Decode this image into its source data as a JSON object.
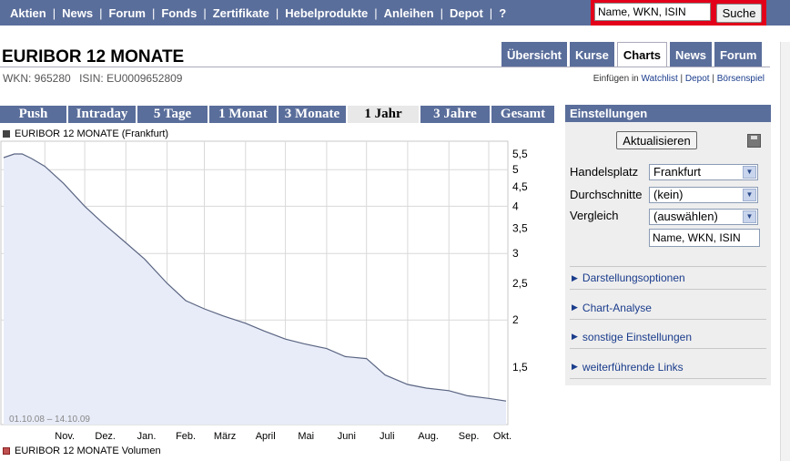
{
  "nav": {
    "items": [
      "Aktien",
      "News",
      "Forum",
      "Fonds",
      "Zertifikate",
      "Hebelprodukte",
      "Anleihen",
      "Depot",
      "?"
    ],
    "search_placeholder": "Name, WKN, ISIN",
    "search_button": "Suche"
  },
  "header": {
    "title": "EURIBOR 12 MONATE",
    "wkn": "WKN: 965280",
    "isin": "ISIN: EU0009652809"
  },
  "tabs": [
    {
      "label": "Übersicht"
    },
    {
      "label": "Kurse"
    },
    {
      "label": "Charts",
      "active": true
    },
    {
      "label": "News"
    },
    {
      "label": "Forum"
    }
  ],
  "watchlist": {
    "prefix": "Einfügen in",
    "links": [
      "Watchlist",
      "Depot",
      "Börsenspiel"
    ]
  },
  "ranges": [
    {
      "label": "Push"
    },
    {
      "label": "Intraday"
    },
    {
      "label": "5 Tage"
    },
    {
      "label": "1 Monat"
    },
    {
      "label": "3 Monate"
    },
    {
      "label": "1 Jahr",
      "active": true
    },
    {
      "label": "3 Jahre"
    },
    {
      "label": "Gesamt"
    }
  ],
  "chart_data": {
    "type": "area",
    "legend": "EURIBOR 12 MONATE (Frankfurt)",
    "date_range_label": "01.10.08 – 14.10.09",
    "x_tick_labels": [
      "Nov.",
      "Dez.",
      "Jan.",
      "Feb.",
      "März",
      "April",
      "Mai",
      "Juni",
      "Juli",
      "Aug.",
      "Sep.",
      "Okt."
    ],
    "y_tick_labels": [
      "5,5",
      "5",
      "4,5",
      "4",
      "3,5",
      "3",
      "2,5",
      "2",
      "1,5"
    ],
    "y_scale": "log",
    "grid": true,
    "series": [
      {
        "x": [
          "2008-10-01",
          "2008-10-09",
          "2008-10-15",
          "2008-10-22",
          "2008-11-01",
          "2008-11-15",
          "2008-12-01",
          "2008-12-15",
          "2009-01-01",
          "2009-01-15",
          "2009-02-01",
          "2009-02-15",
          "2009-03-01",
          "2009-03-15",
          "2009-04-01",
          "2009-04-15",
          "2009-05-01",
          "2009-05-15",
          "2009-06-01",
          "2009-06-15",
          "2009-07-01",
          "2009-07-15",
          "2009-08-01",
          "2009-08-15",
          "2009-09-01",
          "2009-09-15",
          "2009-10-01",
          "2009-10-14"
        ],
        "y": [
          5.38,
          5.5,
          5.5,
          5.35,
          5.1,
          4.6,
          4.0,
          3.6,
          3.2,
          2.9,
          2.5,
          2.25,
          2.14,
          2.05,
          1.96,
          1.87,
          1.78,
          1.73,
          1.68,
          1.6,
          1.58,
          1.43,
          1.35,
          1.32,
          1.3,
          1.26,
          1.24,
          1.22
        ]
      }
    ]
  },
  "volume_legend": "EURIBOR 12 MONATE Volumen",
  "panel": {
    "title": "Einstellungen",
    "refresh_button": "Aktualisieren",
    "handelsplatz_label": "Handelsplatz",
    "handelsplatz_value": "Frankfurt",
    "durchschnitte_label": "Durchschnitte",
    "durchschnitte_value": "(kein)",
    "vergleich_label": "Vergleich",
    "vergleich_value": "(auswählen)",
    "vergleich_placeholder": "Name, WKN, ISIN",
    "accordions": [
      "Darstellungsoptionen",
      "Chart-Analyse",
      "sonstige Einstellungen",
      "weiterführende Links"
    ]
  }
}
